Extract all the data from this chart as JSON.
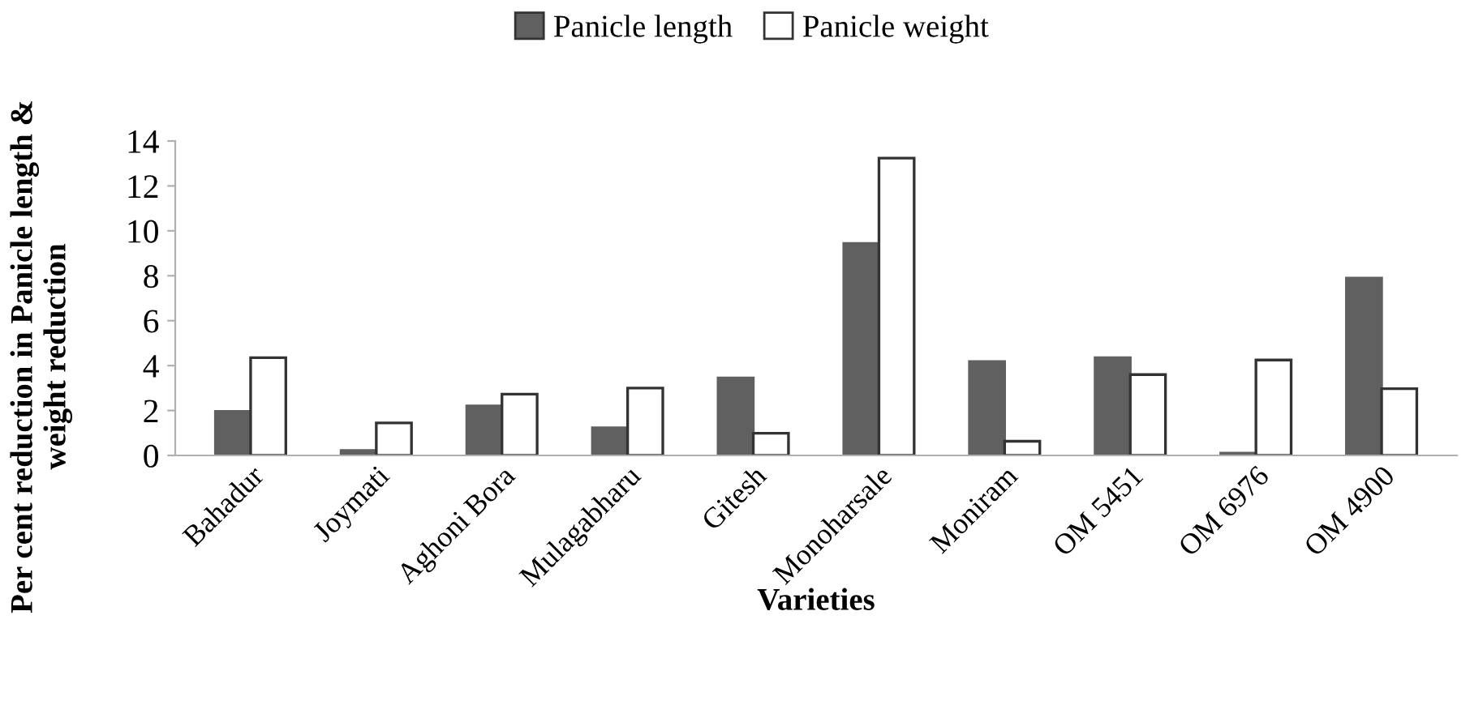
{
  "chart_data": {
    "type": "bar",
    "categories": [
      "Bahadur",
      "Joymati",
      "Aghoni Bora",
      "Mulagabharu",
      "Gitesh",
      "Monoharsale",
      "Moniram",
      "OM 5451",
      "OM 6976",
      "OM 4900"
    ],
    "series": [
      {
        "name": "Panicle length",
        "color": "#606060",
        "values": [
          1.96,
          0.22,
          2.2,
          1.23,
          3.45,
          9.44,
          4.18,
          4.35,
          0.1,
          7.9
        ]
      },
      {
        "name": "Panicle weight",
        "color": "#ffffff",
        "values": [
          4.35,
          1.45,
          2.73,
          3.0,
          0.99,
          13.24,
          0.63,
          3.6,
          4.25,
          2.97
        ]
      }
    ],
    "xlabel": "Varieties",
    "ylabel": "Per cent reduction in Panicle length &\nweight reduction",
    "ylim": [
      0,
      14
    ],
    "yticks": [
      0,
      2,
      4,
      6,
      8,
      10,
      12,
      14
    ],
    "grid": false,
    "legend": "top"
  }
}
